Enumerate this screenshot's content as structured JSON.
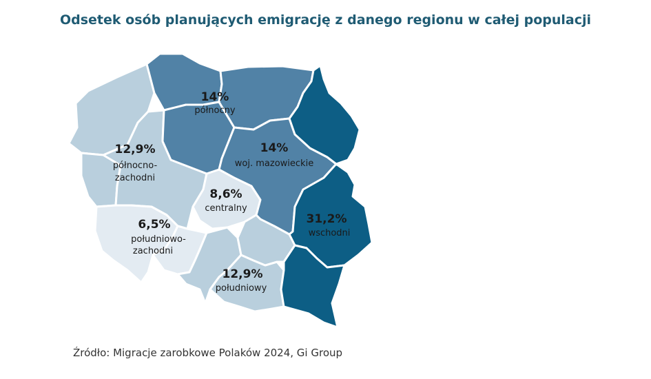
{
  "title": "Odsetek osób planujących emigrację z danego regionu w całej populacji",
  "source": "Źródło: Migracje zarobkowe Polaków 2024, Gi Group",
  "colors": {
    "title": "#1f5b73",
    "text": "#1a1a1a",
    "border": "#ffffff",
    "palette_light_to_dark": [
      "#e3ebf2",
      "#b9cfdd",
      "#5182a6",
      "#0d5e85"
    ]
  },
  "regions": {
    "polnocny": {
      "value": "14%",
      "name": "północny",
      "color": "#5182a6"
    },
    "mazowieckie": {
      "value": "14%",
      "name": "woj. mazowieckie",
      "color": "#5182a6"
    },
    "wschodni": {
      "value": "31,2%",
      "name": "wschodni",
      "color": "#0d5e85"
    },
    "polnocno_zachodni": {
      "value": "12,9%",
      "name_line1": "północno-",
      "name_line2": "zachodni",
      "color": "#b9cfdd"
    },
    "centralny": {
      "value": "8,6%",
      "name": "centralny",
      "color": "#dde7ef"
    },
    "poludniowo_zachodni": {
      "value": "6,5%",
      "name_line1": "południowo-",
      "name_line2": "zachodni",
      "color": "#e3ebf2"
    },
    "poludniowy": {
      "value": "12,9%",
      "name": "południowy",
      "color": "#b9cfdd"
    }
  }
}
